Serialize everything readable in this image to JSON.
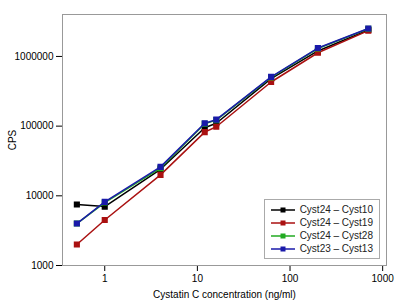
{
  "chart_data": {
    "type": "line",
    "xlabel": "Cystatin C concentration (ng/ml)",
    "ylabel": "CPS",
    "log": true,
    "x": [
      0.5,
      1.0,
      4.0,
      12.0,
      16.0,
      62.5,
      200.0,
      700.0
    ],
    "series": [
      {
        "name": "Cyst24 – Cyst10",
        "color": "#000000",
        "values": [
          7500,
          7000,
          24000,
          95000,
          110000,
          480000,
          1200000,
          2400000
        ]
      },
      {
        "name": "Cyst24 – Cyst19",
        "color": "#aa1111",
        "values": [
          2000,
          4500,
          20000,
          82000,
          98000,
          430000,
          1130000,
          2350000
        ]
      },
      {
        "name": "Cyst24 – Cyst28",
        "color": "#22aa22",
        "values": [
          4000,
          8000,
          25000,
          108000,
          122000,
          500000,
          1300000,
          2500000
        ]
      },
      {
        "name": "Cyst23 – Cyst13",
        "color": "#1a1aaa",
        "values": [
          4000,
          8200,
          26000,
          110000,
          124000,
          510000,
          1320000,
          2520000
        ]
      }
    ],
    "xlim": [
      0.35,
      1100
    ],
    "ylim": [
      1000,
      4000000
    ],
    "xticks": [
      1,
      10,
      100,
      1000
    ],
    "yticks": [
      1000,
      10000,
      100000,
      1000000
    ],
    "marker": "square",
    "line_style": "solid",
    "legend": "lower right",
    "grid": false
  }
}
